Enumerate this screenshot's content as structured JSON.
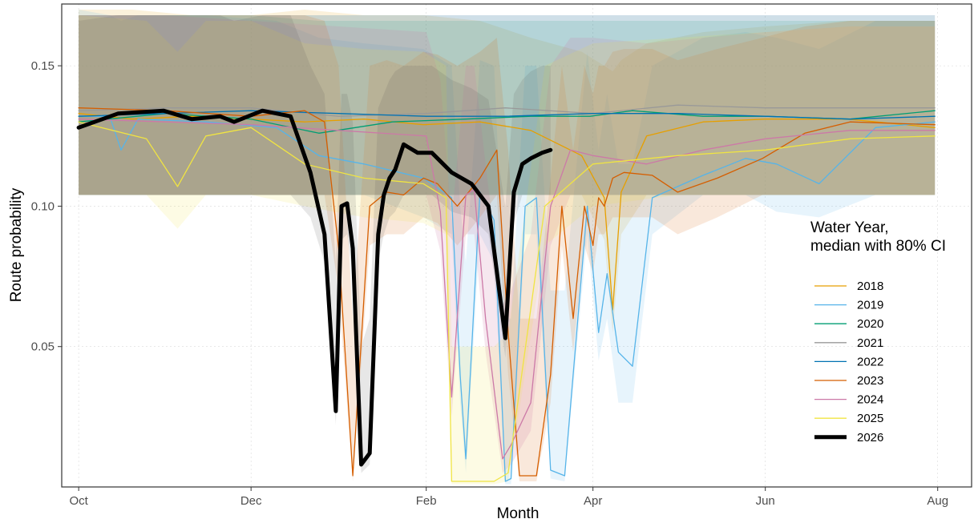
{
  "chart_data": {
    "type": "line",
    "xlabel": "Month",
    "ylabel": "Route probability",
    "x_ticks": [
      "Oct",
      "Dec",
      "Feb",
      "Apr",
      "Jun",
      "Aug"
    ],
    "y_ticks": [
      "0.05",
      "0.10",
      "0.15"
    ],
    "y_tick_values": [
      0.05,
      0.1,
      0.15
    ],
    "ylim": [
      0.0,
      0.172
    ],
    "xlim_days": [
      -6,
      316
    ],
    "grid": true,
    "legend": {
      "title_line1": "Water Year,",
      "title_line2": "median with 80% CI",
      "placement": "right"
    },
    "series": [
      {
        "name": "2018",
        "color": "#E69F00",
        "width": 1.3,
        "x": [
          "Oct 1",
          "Oct 20",
          "Nov 10",
          "Dec 1",
          "Dec 20",
          "Jan 10",
          "Jan 31",
          "Feb 20",
          "Mar 10",
          "Mar 28",
          "Apr 5",
          "Apr 8",
          "Apr 11",
          "Apr 20",
          "May 10",
          "Jun 1",
          "Jun 30",
          "Jul 31"
        ],
        "y": [
          0.133,
          0.131,
          0.132,
          0.131,
          0.13,
          0.131,
          0.129,
          0.13,
          0.127,
          0.118,
          0.103,
          0.063,
          0.105,
          0.125,
          0.13,
          0.131,
          0.131,
          0.128
        ],
        "lower": [
          0.104,
          0.104,
          0.104,
          0.104,
          0.104,
          0.104,
          0.104,
          0.104,
          0.104,
          0.104,
          0.088,
          0.055,
          0.09,
          0.104,
          0.104,
          0.104,
          0.104,
          0.104
        ],
        "upper": [
          0.17,
          0.17,
          0.168,
          0.168,
          0.17,
          0.168,
          0.168,
          0.166,
          0.16,
          0.155,
          0.15,
          0.148,
          0.152,
          0.158,
          0.162,
          0.164,
          0.166,
          0.166
        ]
      },
      {
        "name": "2019",
        "color": "#56B4E9",
        "width": 1.3,
        "x": [
          "Oct 1",
          "Oct 12",
          "Oct 16",
          "Oct 22",
          "Nov 15",
          "Dec 10",
          "Dec 25",
          "Jan 10",
          "Jan 31",
          "Feb 10",
          "Feb 13",
          "Feb 15",
          "Feb 20",
          "Feb 25",
          "Mar 1",
          "Mar 3",
          "Mar 8",
          "Mar 12",
          "Mar 17",
          "Mar 22",
          "Mar 30",
          "Apr 3",
          "Apr 6",
          "Apr 10",
          "Apr 15",
          "Apr 22",
          "May 10",
          "May 25",
          "Jun 5",
          "Jun 20",
          "Jul 10",
          "Jul 31"
        ],
        "y": [
          0.132,
          0.132,
          0.12,
          0.131,
          0.13,
          0.128,
          0.118,
          0.115,
          0.11,
          0.103,
          0.04,
          0.01,
          0.105,
          0.095,
          0.002,
          0.003,
          0.1,
          0.103,
          0.006,
          0.004,
          0.1,
          0.055,
          0.076,
          0.048,
          0.043,
          0.103,
          0.111,
          0.117,
          0.115,
          0.108,
          0.128,
          0.13
        ],
        "lower": [
          0.104,
          0.104,
          0.104,
          0.104,
          0.104,
          0.104,
          0.104,
          0.104,
          0.096,
          0.09,
          0.03,
          0.005,
          0.09,
          0.08,
          0.001,
          0.001,
          0.09,
          0.09,
          0.003,
          0.002,
          0.09,
          0.045,
          0.06,
          0.03,
          0.03,
          0.09,
          0.104,
          0.104,
          0.098,
          0.096,
          0.104,
          0.104
        ],
        "upper": [
          0.17,
          0.168,
          0.166,
          0.168,
          0.168,
          0.166,
          0.16,
          0.158,
          0.156,
          0.15,
          0.1,
          0.08,
          0.152,
          0.15,
          0.06,
          0.06,
          0.15,
          0.15,
          0.07,
          0.07,
          0.155,
          0.12,
          0.14,
          0.115,
          0.115,
          0.15,
          0.16,
          0.162,
          0.16,
          0.156,
          0.166,
          0.166
        ]
      },
      {
        "name": "2020",
        "color": "#009E73",
        "width": 1.3,
        "x": [
          "Oct 1",
          "Nov 1",
          "Dec 1",
          "Dec 25",
          "Jan 20",
          "Feb 15",
          "Mar 10",
          "Mar 31",
          "Apr 15",
          "May 10",
          "Jun 1",
          "Jul 1",
          "Jul 31"
        ],
        "y": [
          0.13,
          0.133,
          0.131,
          0.126,
          0.13,
          0.131,
          0.132,
          0.132,
          0.134,
          0.132,
          0.132,
          0.131,
          0.134
        ],
        "lower": [
          0.104,
          0.104,
          0.104,
          0.104,
          0.104,
          0.104,
          0.104,
          0.104,
          0.104,
          0.104,
          0.104,
          0.104,
          0.104
        ],
        "upper": [
          0.168,
          0.168,
          0.168,
          0.166,
          0.166,
          0.166,
          0.166,
          0.166,
          0.166,
          0.166,
          0.166,
          0.166,
          0.166
        ]
      },
      {
        "name": "2021",
        "color": "#999999",
        "width": 1.3,
        "x": [
          "Oct 1",
          "Nov 1",
          "Dec 1",
          "Jan 1",
          "Feb 1",
          "Mar 1",
          "Apr 1",
          "May 1",
          "Jun 1",
          "Jul 1",
          "Jul 31"
        ],
        "y": [
          0.134,
          0.135,
          0.135,
          0.132,
          0.133,
          0.135,
          0.133,
          0.136,
          0.135,
          0.135,
          0.135
        ],
        "lower": [
          0.104,
          0.104,
          0.104,
          0.104,
          0.104,
          0.104,
          0.104,
          0.104,
          0.104,
          0.104,
          0.104
        ],
        "upper": [
          0.168,
          0.168,
          0.168,
          0.168,
          0.168,
          0.168,
          0.168,
          0.168,
          0.168,
          0.168,
          0.168
        ]
      },
      {
        "name": "2022",
        "color": "#0072B2",
        "width": 1.3,
        "x": [
          "Oct 1",
          "Nov 1",
          "Dec 1",
          "Jan 1",
          "Feb 1",
          "Mar 1",
          "Apr 1",
          "May 1",
          "Jun 1",
          "Jul 1",
          "Jul 31"
        ],
        "y": [
          0.132,
          0.133,
          0.134,
          0.133,
          0.132,
          0.132,
          0.133,
          0.133,
          0.132,
          0.131,
          0.132
        ],
        "lower": [
          0.104,
          0.104,
          0.104,
          0.104,
          0.104,
          0.104,
          0.104,
          0.104,
          0.104,
          0.104,
          0.104
        ],
        "upper": [
          0.168,
          0.168,
          0.168,
          0.168,
          0.168,
          0.168,
          0.168,
          0.168,
          0.168,
          0.168,
          0.168
        ]
      },
      {
        "name": "2023",
        "color": "#D55E00",
        "width": 1.3,
        "x": [
          "Oct 1",
          "Nov 1",
          "Dec 1",
          "Dec 20",
          "Dec 27",
          "Jan 1",
          "Jan 6",
          "Jan 12",
          "Jan 18",
          "Jan 24",
          "Jan 31",
          "Feb 5",
          "Feb 12",
          "Feb 20",
          "Feb 26",
          "Mar 2",
          "Mar 6",
          "Mar 12",
          "Mar 17",
          "Mar 21",
          "Mar 25",
          "Mar 29",
          "Apr 1",
          "Apr 3",
          "Apr 5",
          "Apr 8",
          "Apr 12",
          "Apr 22",
          "May 1",
          "May 15",
          "May 31",
          "Jun 15",
          "Jul 1",
          "Jul 31"
        ],
        "y": [
          0.135,
          0.134,
          0.132,
          0.134,
          0.13,
          0.085,
          0.004,
          0.1,
          0.105,
          0.104,
          0.11,
          0.108,
          0.1,
          0.11,
          0.12,
          0.055,
          0.004,
          0.004,
          0.04,
          0.1,
          0.06,
          0.1,
          0.086,
          0.103,
          0.1,
          0.11,
          0.112,
          0.111,
          0.105,
          0.11,
          0.117,
          0.126,
          0.13,
          0.129
        ],
        "lower": [
          0.104,
          0.104,
          0.104,
          0.104,
          0.104,
          0.07,
          0.002,
          0.086,
          0.09,
          0.09,
          0.096,
          0.094,
          0.086,
          0.096,
          0.104,
          0.04,
          0.002,
          0.002,
          0.03,
          0.086,
          0.048,
          0.086,
          0.076,
          0.09,
          0.09,
          0.096,
          0.096,
          0.096,
          0.09,
          0.096,
          0.104,
          0.104,
          0.104,
          0.104
        ],
        "upper": [
          0.168,
          0.168,
          0.168,
          0.168,
          0.166,
          0.15,
          0.06,
          0.15,
          0.152,
          0.15,
          0.155,
          0.154,
          0.15,
          0.155,
          0.16,
          0.12,
          0.06,
          0.06,
          0.11,
          0.15,
          0.12,
          0.15,
          0.14,
          0.15,
          0.15,
          0.155,
          0.156,
          0.156,
          0.152,
          0.156,
          0.16,
          0.164,
          0.166,
          0.166
        ]
      },
      {
        "name": "2024",
        "color": "#CC79A7",
        "width": 1.3,
        "x": [
          "Oct 1",
          "Nov 1",
          "Dec 1",
          "Jan 1",
          "Feb 1",
          "Feb 6",
          "Feb 10",
          "Feb 15",
          "Feb 18",
          "Feb 22",
          "Feb 28",
          "Mar 3",
          "Mar 10",
          "Mar 17",
          "Mar 24",
          "Apr 1",
          "Apr 20",
          "May 10",
          "Jun 1",
          "Jul 1",
          "Jul 31"
        ],
        "y": [
          0.131,
          0.13,
          0.129,
          0.127,
          0.125,
          0.098,
          0.032,
          0.104,
          0.106,
          0.06,
          0.01,
          0.015,
          0.03,
          0.1,
          0.12,
          0.118,
          0.115,
          0.12,
          0.124,
          0.127,
          0.127
        ],
        "lower": [
          0.104,
          0.104,
          0.104,
          0.104,
          0.104,
          0.084,
          0.025,
          0.09,
          0.09,
          0.048,
          0.005,
          0.008,
          0.02,
          0.086,
          0.104,
          0.104,
          0.104,
          0.104,
          0.104,
          0.104,
          0.104
        ],
        "upper": [
          0.168,
          0.168,
          0.166,
          0.164,
          0.162,
          0.145,
          0.095,
          0.15,
          0.15,
          0.115,
          0.065,
          0.07,
          0.09,
          0.15,
          0.16,
          0.16,
          0.158,
          0.16,
          0.162,
          0.164,
          0.164
        ],
        "band_opacity": 0.18
      },
      {
        "name": "2025",
        "color": "#F0E442",
        "width": 1.3,
        "x": [
          "Oct 1",
          "Oct 25",
          "Nov 5",
          "Nov 15",
          "Dec 1",
          "Dec 20",
          "Jan 10",
          "Jan 31",
          "Feb 8",
          "Feb 10",
          "Feb 20",
          "Feb 25",
          "Mar 2",
          "Mar 15",
          "Apr 1",
          "May 1",
          "Jun 1",
          "Jul 1",
          "Jul 31"
        ],
        "y": [
          0.13,
          0.124,
          0.107,
          0.125,
          0.128,
          0.115,
          0.11,
          0.108,
          0.103,
          0.002,
          0.002,
          0.002,
          0.005,
          0.1,
          0.115,
          0.118,
          0.12,
          0.124,
          0.125
        ],
        "lower": [
          0.104,
          0.104,
          0.092,
          0.104,
          0.104,
          0.1,
          0.096,
          0.094,
          0.09,
          0.001,
          0.001,
          0.001,
          0.002,
          0.086,
          0.1,
          0.104,
          0.104,
          0.104,
          0.104
        ],
        "upper": [
          0.168,
          0.166,
          0.155,
          0.166,
          0.166,
          0.158,
          0.156,
          0.155,
          0.15,
          0.05,
          0.05,
          0.05,
          0.055,
          0.15,
          0.158,
          0.16,
          0.162,
          0.164,
          0.164
        ]
      },
      {
        "name": "2026",
        "color": "#000000",
        "width": 5,
        "x": [
          "Oct 1",
          "Oct 15",
          "Oct 31",
          "Nov 10",
          "Nov 20",
          "Nov 25",
          "Dec 5",
          "Dec 15",
          "Dec 22",
          "Dec 27",
          "Dec 31",
          "Jan 2",
          "Jan 4",
          "Jan 6",
          "Jan 9",
          "Jan 12",
          "Jan 15",
          "Jan 17",
          "Jan 19",
          "Jan 21",
          "Jan 24",
          "Jan 29",
          "Feb 3",
          "Feb 10",
          "Feb 17",
          "Feb 23",
          "Mar 1",
          "Mar 4",
          "Mar 7",
          "Mar 10",
          "Mar 14",
          "Mar 17"
        ],
        "y": [
          0.128,
          0.133,
          0.134,
          0.131,
          0.132,
          0.13,
          0.134,
          0.132,
          0.112,
          0.09,
          0.027,
          0.1,
          0.101,
          0.085,
          0.008,
          0.012,
          0.09,
          0.104,
          0.11,
          0.113,
          0.122,
          0.119,
          0.119,
          0.112,
          0.108,
          0.1,
          0.053,
          0.105,
          0.115,
          0.117,
          0.119,
          0.12
        ],
        "lower": [
          0.104,
          0.104,
          0.104,
          0.104,
          0.104,
          0.104,
          0.104,
          0.104,
          0.096,
          0.08,
          0.022,
          0.088,
          0.09,
          0.075,
          0.005,
          0.008,
          0.08,
          0.09,
          0.096,
          0.098,
          0.104,
          0.104,
          0.104,
          0.098,
          0.096,
          0.09,
          0.046,
          0.094,
          0.104,
          0.104,
          0.104,
          0.104
        ],
        "upper": [
          0.166,
          0.168,
          0.168,
          0.168,
          0.168,
          0.166,
          0.168,
          0.168,
          0.15,
          0.14,
          0.08,
          0.14,
          0.14,
          0.13,
          0.05,
          0.06,
          0.135,
          0.14,
          0.145,
          0.148,
          0.15,
          0.15,
          0.15,
          0.145,
          0.142,
          0.138,
          0.1,
          0.14,
          0.145,
          0.148,
          0.15,
          0.15
        ],
        "band_color": "#555555"
      }
    ]
  }
}
